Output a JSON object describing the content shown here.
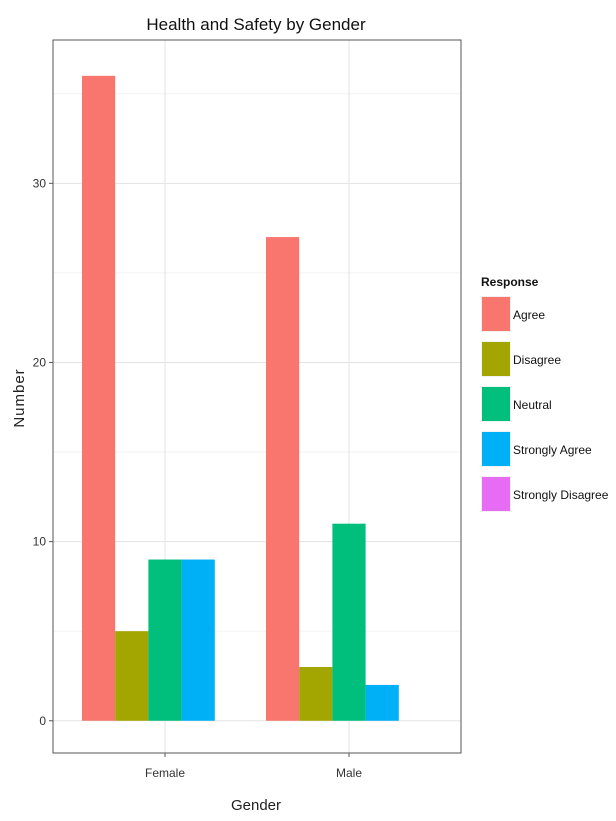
{
  "chart_data": {
    "type": "bar",
    "title": "Health and Safety by Gender",
    "xlabel": "Gender",
    "ylabel": "Number",
    "categories": [
      "Female",
      "Male"
    ],
    "ylim": [
      0,
      38
    ],
    "yticks": [
      0,
      10,
      20,
      30
    ],
    "grid": true,
    "legend": {
      "title": "Response",
      "position": "right"
    },
    "series": [
      {
        "name": "Agree",
        "color": "#F8766D",
        "values": [
          36,
          27
        ]
      },
      {
        "name": "Disagree",
        "color": "#A3A500",
        "values": [
          5,
          3
        ]
      },
      {
        "name": "Neutral",
        "color": "#00BF7D",
        "values": [
          9,
          11
        ]
      },
      {
        "name": "Strongly Agree",
        "color": "#00B0F6",
        "values": [
          9,
          2
        ]
      },
      {
        "name": "Strongly Disagree",
        "color": "#E76BF3",
        "values": [
          0,
          0
        ]
      }
    ]
  }
}
